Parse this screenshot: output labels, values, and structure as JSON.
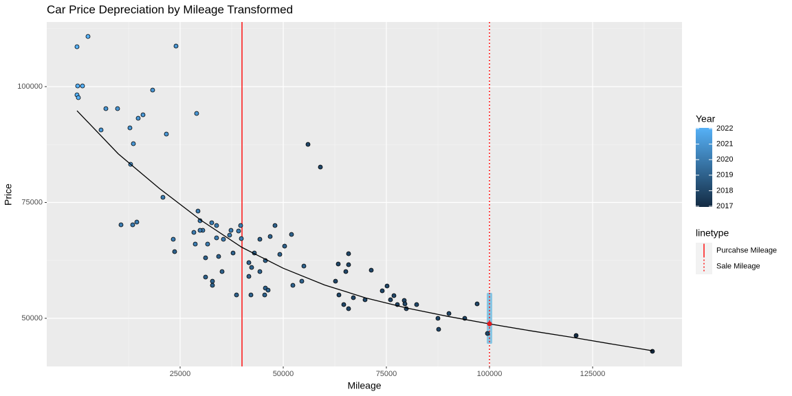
{
  "chart_data": {
    "type": "scatter",
    "title": "Car Price Depreciation by Mileage Transformed",
    "x_label": "Mileage",
    "y_label": "Price",
    "xlim": [
      -7333,
      146667
    ],
    "ylim": [
      39614,
      113947
    ],
    "xticks": [
      25000,
      50000,
      75000,
      100000,
      125000
    ],
    "yticks": [
      50000,
      75000,
      100000
    ],
    "grid": true,
    "x": [
      0,
      2667,
      167,
      1333,
      0,
      333,
      7000,
      9833,
      5833,
      18333,
      24000,
      16000,
      14833,
      12833,
      13667,
      21667,
      29000,
      13000,
      20833,
      10667,
      13500,
      14500,
      23333,
      23667,
      29333,
      29833,
      30500,
      29833,
      28333,
      28667,
      32667,
      33833,
      31667,
      33833,
      35500,
      37000,
      37333,
      39167,
      39667,
      39833,
      31167,
      34333,
      31167,
      32833,
      32833,
      35167,
      37833,
      43000,
      41667,
      42333,
      41667,
      44333,
      44333,
      45667,
      46833,
      48000,
      49167,
      50333,
      52000,
      55000,
      54500,
      52333,
      45667,
      46333,
      45500,
      42167,
      38667,
      56000,
      59000,
      62667,
      63333,
      63500,
      64667,
      65833,
      65167,
      65833,
      65833,
      67000,
      69833,
      71333,
      74000,
      75167,
      76000,
      76833,
      77667,
      79333,
      79500,
      79833,
      82333,
      87500,
      87667,
      90167,
      94000,
      97000,
      99500,
      121000,
      139500
    ],
    "values": [
      108605,
      110831,
      100148,
      100148,
      98220,
      97626,
      95252,
      95252,
      90653,
      99258,
      108754,
      93917,
      93175,
      91098,
      87685,
      89763,
      94214,
      83234,
      76113,
      70178,
      70178,
      70772,
      67062,
      64392,
      73145,
      71068,
      68991,
      68991,
      68546,
      66024,
      70623,
      70030,
      66024,
      67359,
      67062,
      67953,
      68991,
      68843,
      70030,
      67211,
      63056,
      63353,
      58902,
      58012,
      57122,
      60089,
      64095,
      64095,
      62018,
      60979,
      59050,
      60089,
      67062,
      62463,
      67656,
      70030,
      63798,
      65579,
      68101,
      61276,
      58012,
      57122,
      56528,
      56083,
      55045,
      55045,
      55045,
      87537,
      82641,
      58012,
      61721,
      55045,
      52967,
      52077,
      60089,
      63947,
      61573,
      54451,
      54006,
      60385,
      55935,
      56973,
      54006,
      54896,
      52967,
      53858,
      53116,
      52077,
      52967,
      50000,
      47626,
      51039,
      50000,
      53116,
      46736,
      46291,
      42878
    ],
    "years": [
      2022,
      2022,
      2022,
      2022,
      2022,
      2022,
      2021,
      2021,
      2021,
      2021,
      2021,
      2021,
      2021,
      2021,
      2021,
      2021,
      2021,
      2021,
      2020,
      2020,
      2020,
      2020,
      2020,
      2019,
      2020,
      2020,
      2020,
      2020,
      2020,
      2020,
      2020,
      2020,
      2020,
      2020,
      2020,
      2020,
      2020,
      2020,
      2020,
      2020,
      2019,
      2019,
      2019,
      2019,
      2019,
      2019,
      2019,
      2019,
      2019,
      2019,
      2019,
      2019,
      2019,
      2019,
      2019,
      2019,
      2019,
      2019,
      2019,
      2019,
      2019,
      2019,
      2019,
      2019,
      2019,
      2019,
      2019,
      2018,
      2018,
      2018,
      2018,
      2018,
      2018,
      2018,
      2018,
      2018,
      2018,
      2018,
      2018,
      2018,
      2018,
      2018,
      2018,
      2018,
      2018,
      2018,
      2018,
      2018,
      2018,
      2018,
      2018,
      2018,
      2018,
      2018,
      2018,
      2017,
      2017
    ],
    "color_scale": {
      "title": "Year",
      "lim": [
        2017,
        2022
      ],
      "ticks": [
        2017,
        2018,
        2019,
        2020,
        2021,
        2022
      ],
      "low_color": "#132B43",
      "high_color": "#56B1F7"
    },
    "fit": {
      "x": [
        0,
        10000,
        20000,
        30000,
        40000,
        50000,
        60000,
        70000,
        80000,
        90000,
        100000,
        110000,
        120000,
        130000,
        139500
      ],
      "values": [
        94800,
        85500,
        78000,
        71200,
        65300,
        60800,
        57200,
        54400,
        52200,
        50400,
        48800,
        47300,
        45900,
        44400,
        43000
      ],
      "color": "#000000"
    },
    "interval": {
      "x": 100000,
      "low": 44500,
      "high": 55500,
      "color": "#87c5e3"
    },
    "highlight": {
      "x": 100000,
      "value": 48800,
      "color": "#e31a1c"
    },
    "linetype_title": "linetype",
    "vlines": [
      {
        "name": "Purcahse Mileage",
        "x": 40000,
        "color": "#ff0000",
        "dash": "solid"
      },
      {
        "name": "Sale Mileage",
        "x": 100000,
        "color": "#ff0000",
        "dash": "dotted"
      }
    ]
  }
}
